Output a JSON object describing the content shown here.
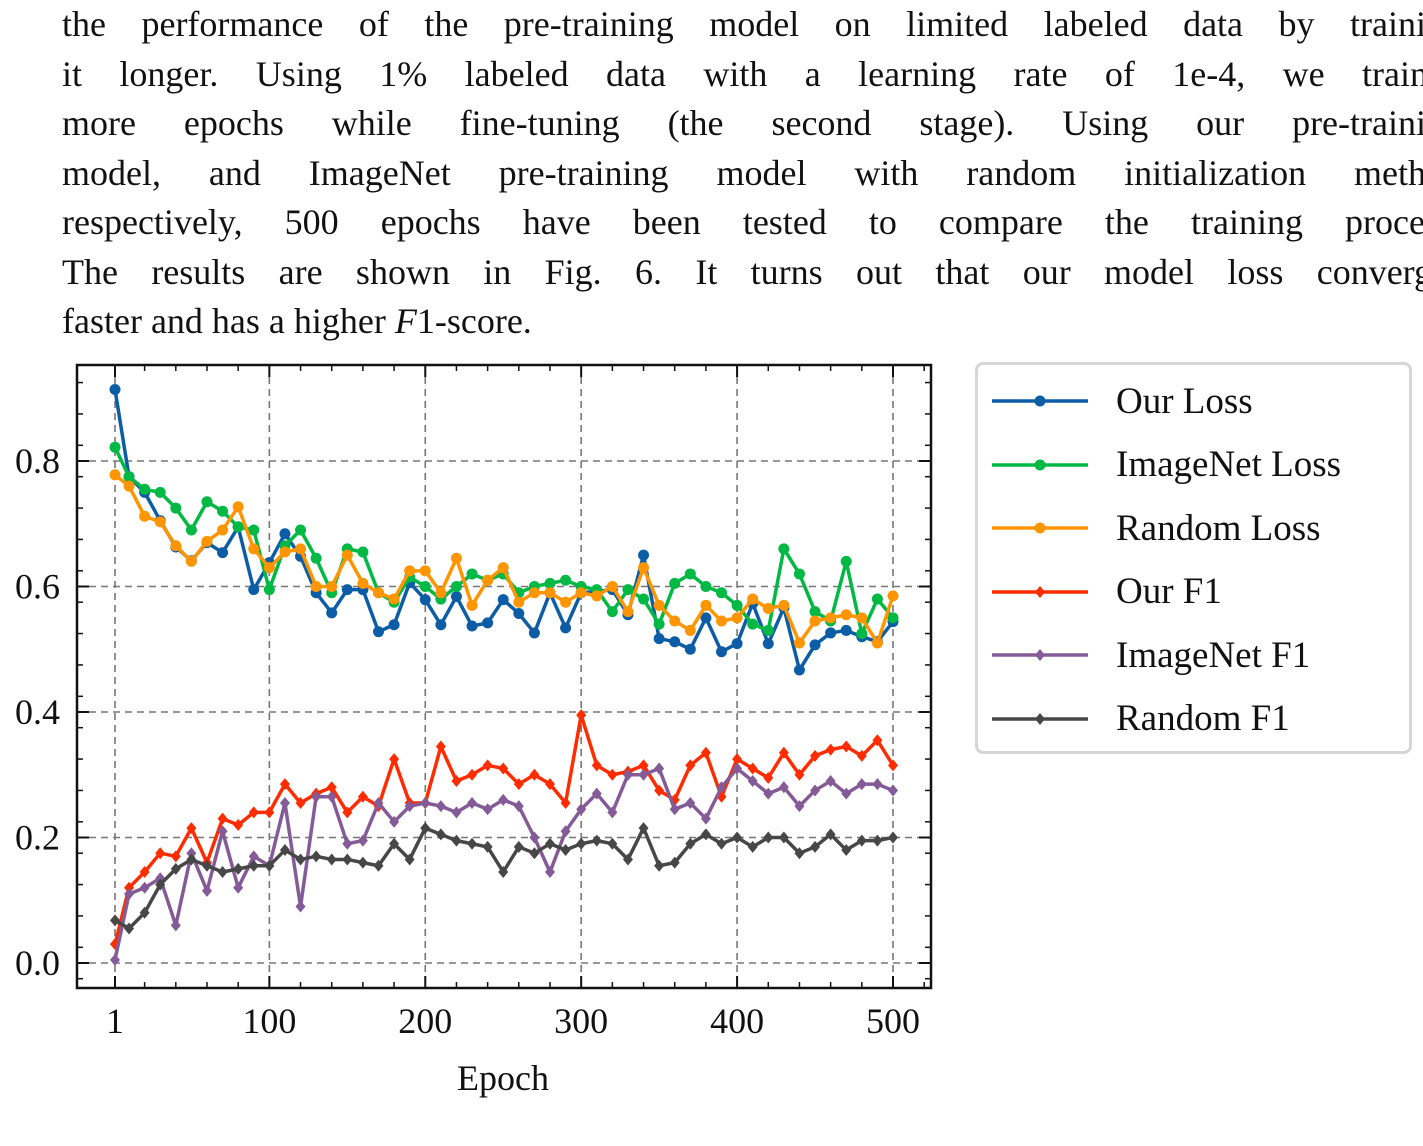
{
  "paragraph": {
    "lines": [
      "the performance of the pre-training model on limited labeled data by training",
      "it longer. Using 1% labeled data with a learning rate of 1e-4, we trained",
      "more epochs while fine-tuning (the second stage). Using our pre-training",
      "model, and ImageNet pre-training model with random initialization method",
      "respectively, 500 epochs have been tested to compare the training process.",
      "The results are shown in Fig. 6. It turns out that our model loss converges"
    ],
    "last_line": {
      "before": "faster and has a higher ",
      "italic": "F",
      "after": "1-score."
    }
  },
  "chart_data": {
    "type": "line",
    "xlabel": "Epoch",
    "ylabel": "",
    "xlim": [
      -20,
      525
    ],
    "ylim": [
      -0.04,
      0.96
    ],
    "x_ticks": [
      1,
      100,
      200,
      300,
      400,
      500
    ],
    "y_ticks": [
      0.0,
      0.2,
      0.4,
      0.6,
      0.8
    ],
    "y_tick_labels": [
      "0.0",
      "0.2",
      "0.4",
      "0.6",
      "0.8"
    ],
    "grid": true,
    "legend_position": "outside-right",
    "x": [
      1,
      10,
      20,
      30,
      40,
      50,
      60,
      70,
      80,
      90,
      100,
      110,
      120,
      130,
      140,
      150,
      160,
      170,
      180,
      190,
      200,
      210,
      220,
      230,
      240,
      250,
      260,
      270,
      280,
      290,
      300,
      310,
      320,
      330,
      340,
      350,
      360,
      370,
      380,
      390,
      400,
      410,
      420,
      430,
      440,
      450,
      460,
      470,
      480,
      490,
      500
    ],
    "series": [
      {
        "name": "Our Loss",
        "color": "#0C5DA5",
        "marker": "circle",
        "values": [
          0.914,
          0.775,
          0.75,
          0.705,
          0.663,
          0.641,
          0.67,
          0.654,
          0.695,
          0.595,
          0.638,
          0.684,
          0.648,
          0.59,
          0.558,
          0.595,
          0.595,
          0.528,
          0.539,
          0.606,
          0.579,
          0.539,
          0.584,
          0.537,
          0.542,
          0.579,
          0.557,
          0.526,
          0.59,
          0.534,
          0.59,
          0.592,
          0.595,
          0.555,
          0.65,
          0.517,
          0.512,
          0.5,
          0.55,
          0.496,
          0.509,
          0.573,
          0.509,
          0.566,
          0.467,
          0.507,
          0.526,
          0.53,
          0.52,
          0.512,
          0.544
        ]
      },
      {
        "name": "ImageNet Loss",
        "color": "#00B945",
        "marker": "circle",
        "values": [
          0.822,
          0.775,
          0.755,
          0.75,
          0.725,
          0.69,
          0.735,
          0.72,
          0.695,
          0.69,
          0.595,
          0.665,
          0.69,
          0.645,
          0.59,
          0.66,
          0.655,
          0.59,
          0.575,
          0.615,
          0.6,
          0.58,
          0.6,
          0.62,
          0.61,
          0.62,
          0.59,
          0.6,
          0.605,
          0.61,
          0.6,
          0.595,
          0.56,
          0.595,
          0.58,
          0.54,
          0.605,
          0.62,
          0.6,
          0.59,
          0.57,
          0.54,
          0.53,
          0.66,
          0.62,
          0.56,
          0.545,
          0.64,
          0.525,
          0.58,
          0.55
        ]
      },
      {
        "name": "Random Loss",
        "color": "#FF9500",
        "marker": "circle",
        "values": [
          0.778,
          0.76,
          0.712,
          0.703,
          0.665,
          0.64,
          0.672,
          0.69,
          0.727,
          0.66,
          0.63,
          0.655,
          0.66,
          0.6,
          0.6,
          0.65,
          0.605,
          0.59,
          0.58,
          0.625,
          0.625,
          0.59,
          0.645,
          0.57,
          0.61,
          0.63,
          0.575,
          0.59,
          0.59,
          0.575,
          0.59,
          0.585,
          0.6,
          0.56,
          0.63,
          0.57,
          0.545,
          0.53,
          0.57,
          0.545,
          0.55,
          0.58,
          0.565,
          0.57,
          0.51,
          0.545,
          0.55,
          0.555,
          0.55,
          0.51,
          0.585
        ]
      },
      {
        "name": "Our F1",
        "color": "#FF2C00",
        "marker": "diamond",
        "values": [
          0.03,
          0.12,
          0.145,
          0.175,
          0.17,
          0.215,
          0.16,
          0.23,
          0.22,
          0.24,
          0.24,
          0.285,
          0.255,
          0.27,
          0.28,
          0.24,
          0.265,
          0.25,
          0.325,
          0.255,
          0.255,
          0.345,
          0.29,
          0.3,
          0.315,
          0.31,
          0.285,
          0.3,
          0.285,
          0.255,
          0.395,
          0.315,
          0.3,
          0.305,
          0.315,
          0.275,
          0.26,
          0.315,
          0.335,
          0.265,
          0.325,
          0.31,
          0.295,
          0.335,
          0.3,
          0.33,
          0.34,
          0.345,
          0.33,
          0.355,
          0.315
        ]
      },
      {
        "name": "ImageNet F1",
        "color": "#845B97",
        "marker": "diamond",
        "values": [
          0.005,
          0.11,
          0.12,
          0.135,
          0.06,
          0.175,
          0.115,
          0.21,
          0.12,
          0.17,
          0.155,
          0.255,
          0.09,
          0.265,
          0.265,
          0.19,
          0.195,
          0.255,
          0.225,
          0.25,
          0.255,
          0.25,
          0.24,
          0.255,
          0.245,
          0.26,
          0.25,
          0.2,
          0.145,
          0.21,
          0.245,
          0.27,
          0.24,
          0.3,
          0.3,
          0.31,
          0.245,
          0.255,
          0.23,
          0.28,
          0.31,
          0.29,
          0.27,
          0.28,
          0.25,
          0.275,
          0.29,
          0.27,
          0.285,
          0.285,
          0.275
        ]
      },
      {
        "name": "Random F1",
        "color": "#474747",
        "marker": "diamond",
        "values": [
          0.068,
          0.055,
          0.08,
          0.125,
          0.15,
          0.165,
          0.155,
          0.145,
          0.15,
          0.155,
          0.155,
          0.18,
          0.165,
          0.17,
          0.165,
          0.165,
          0.16,
          0.155,
          0.19,
          0.165,
          0.215,
          0.205,
          0.195,
          0.19,
          0.185,
          0.145,
          0.185,
          0.175,
          0.19,
          0.18,
          0.19,
          0.195,
          0.19,
          0.165,
          0.215,
          0.155,
          0.16,
          0.19,
          0.205,
          0.19,
          0.2,
          0.185,
          0.2,
          0.2,
          0.175,
          0.185,
          0.205,
          0.18,
          0.195,
          0.195,
          0.2
        ]
      }
    ]
  }
}
